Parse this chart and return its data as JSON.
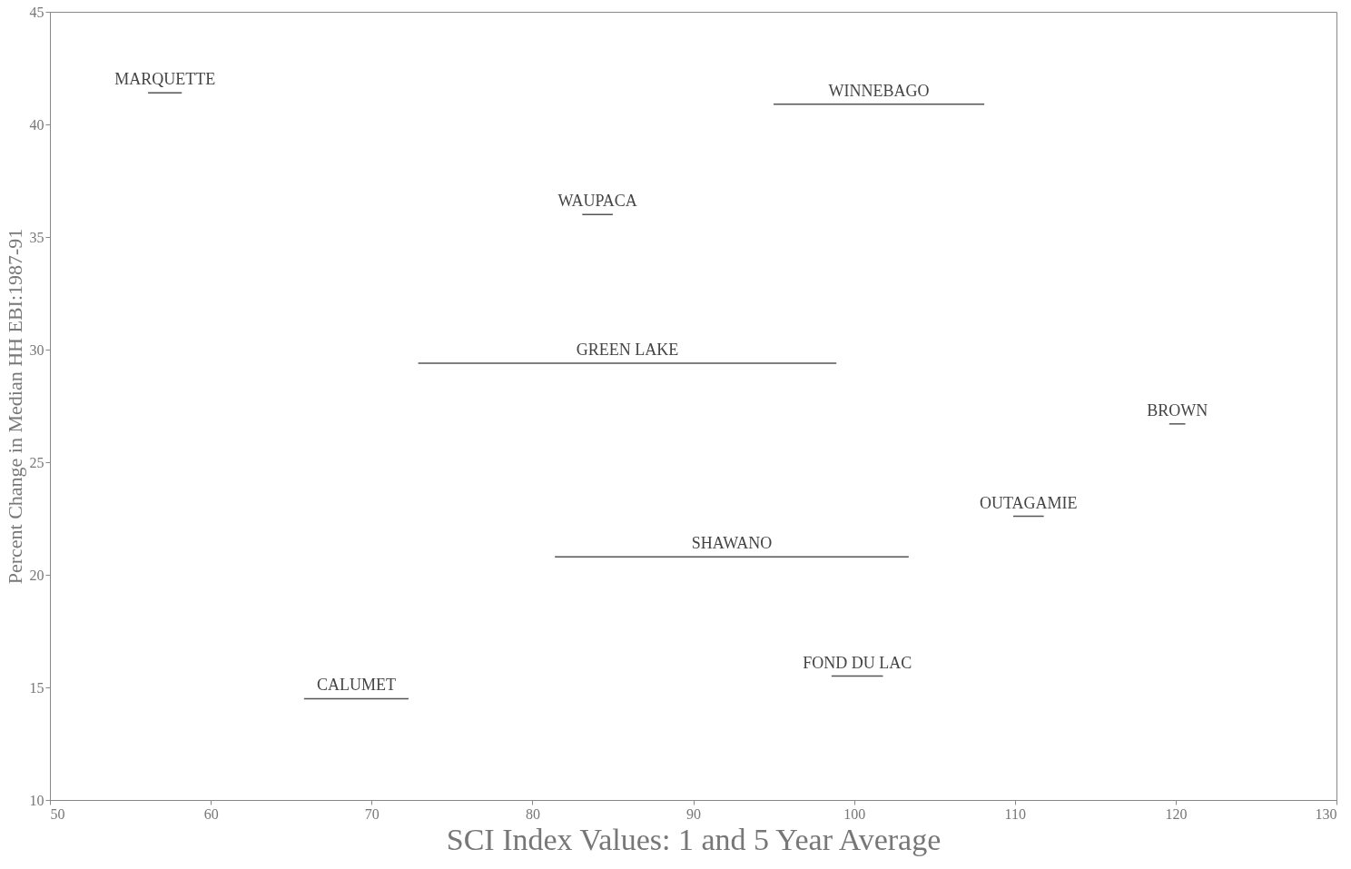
{
  "chart_data": {
    "type": "line",
    "xlabel": "SCI Index Values: 1 and 5 Year Average",
    "ylabel": "Percent Change in Median HH EBI:1987-91",
    "xlim": [
      50,
      130
    ],
    "xticks": [
      50,
      60,
      70,
      80,
      90,
      100,
      110,
      120,
      130
    ],
    "ylim": [
      10,
      45
    ],
    "yticks": [
      10,
      15,
      20,
      25,
      30,
      35,
      40,
      45
    ],
    "grid": false,
    "legend": false,
    "marker": "none",
    "line_style": "solid",
    "series": [
      {
        "name": "MARQUETTE",
        "color": "#555555",
        "x": [
          56.1,
          58.2
        ],
        "values": [
          41.4,
          41.4
        ]
      },
      {
        "name": "WINNEBAGO",
        "color": "#555555",
        "x": [
          95.0,
          108.1
        ],
        "values": [
          40.9,
          40.9
        ]
      },
      {
        "name": "WAUPACA",
        "color": "#555555",
        "x": [
          83.1,
          85.0
        ],
        "values": [
          36.0,
          36.0
        ]
      },
      {
        "name": "GREEN LAKE",
        "color": "#555555",
        "x": [
          72.9,
          98.9
        ],
        "values": [
          29.4,
          29.4
        ]
      },
      {
        "name": "BROWN",
        "color": "#555555",
        "x": [
          119.6,
          120.6
        ],
        "values": [
          26.7,
          26.7
        ]
      },
      {
        "name": "OUTAGAMIE",
        "color": "#555555",
        "x": [
          109.9,
          111.8
        ],
        "values": [
          22.6,
          22.6
        ]
      },
      {
        "name": "SHAWANO",
        "color": "#555555",
        "x": [
          81.4,
          103.4
        ],
        "values": [
          20.8,
          20.8
        ]
      },
      {
        "name": "FOND DU LAC",
        "color": "#555555",
        "x": [
          98.6,
          101.8
        ],
        "values": [
          15.5,
          15.5
        ]
      },
      {
        "name": "CALUMET",
        "color": "#555555",
        "x": [
          65.8,
          72.3
        ],
        "values": [
          14.5,
          14.5
        ]
      }
    ]
  }
}
